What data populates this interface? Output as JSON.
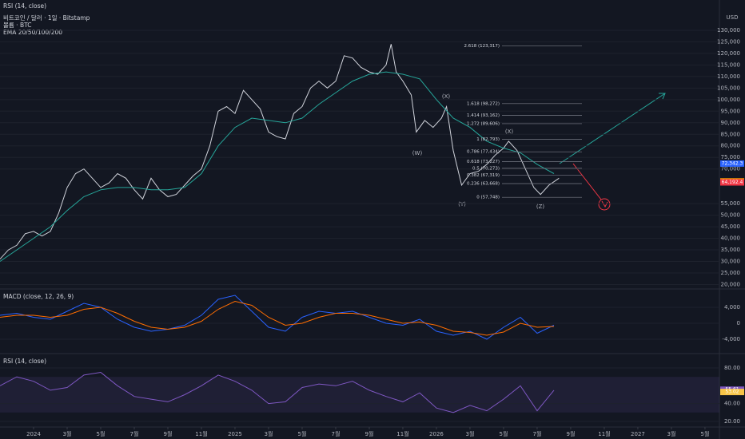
{
  "chart_data": [
    {
      "type": "line",
      "top_label": "RSI (14, close)",
      "legend_lines": [
        "비트코인 / 달러 · 1일 · Bitstamp",
        "볼륨 · BTC",
        "EMA 20/50/100/200"
      ],
      "unit": "USD",
      "xlim": [
        -2,
        40.86
      ],
      "xticks": [
        {
          "value": 0,
          "label": "2024"
        },
        {
          "value": 2,
          "label": "3월"
        },
        {
          "value": 4,
          "label": "5월"
        },
        {
          "value": 6,
          "label": "7월"
        },
        {
          "value": 8,
          "label": "9월"
        },
        {
          "value": 10,
          "label": "11월"
        },
        {
          "value": 12,
          "label": "2025"
        },
        {
          "value": 14,
          "label": "3월"
        },
        {
          "value": 16,
          "label": "5월"
        },
        {
          "value": 18,
          "label": "7월"
        },
        {
          "value": 20,
          "label": "9월"
        },
        {
          "value": 22,
          "label": "11월"
        },
        {
          "value": 24,
          "label": "2026"
        },
        {
          "value": 26,
          "label": "3월"
        },
        {
          "value": 28,
          "label": "5월"
        },
        {
          "value": 30,
          "label": "7월"
        },
        {
          "value": 32,
          "label": "9월"
        },
        {
          "value": 34,
          "label": "11월"
        },
        {
          "value": 36,
          "label": "2027"
        },
        {
          "value": 38,
          "label": "3월"
        },
        {
          "value": 40,
          "label": "5월"
        }
      ],
      "ylim": [
        18100,
        143100
      ],
      "yticks": [
        {
          "value": 20000,
          "label": "20,000"
        },
        {
          "value": 25000,
          "label": "25,000"
        },
        {
          "value": 30000,
          "label": "30,000"
        },
        {
          "value": 35000,
          "label": "35,000"
        },
        {
          "value": 40000,
          "label": "40,000"
        },
        {
          "value": 45000,
          "label": "45,000"
        },
        {
          "value": 50000,
          "label": "50,000"
        },
        {
          "value": 55000,
          "label": "55,000"
        },
        {
          "value": 70000,
          "label": "70,000"
        },
        {
          "value": 75000,
          "label": "75,000"
        },
        {
          "value": 80000,
          "label": "80,000"
        },
        {
          "value": 85000,
          "label": "85,000"
        },
        {
          "value": 90000,
          "label": "90,000"
        },
        {
          "value": 95000,
          "label": "95,000"
        },
        {
          "value": 100000,
          "label": "100,000"
        },
        {
          "value": 105000,
          "label": "105,000"
        },
        {
          "value": 110000,
          "label": "110,000"
        },
        {
          "value": 115000,
          "label": "115,000"
        },
        {
          "value": 120000,
          "label": "120,000"
        },
        {
          "value": 125000,
          "label": "125,000"
        },
        {
          "value": 130000,
          "label": "130,000"
        }
      ],
      "series": [
        {
          "color": "#d1d4dc",
          "x": [
            -2,
            -1.5,
            -1,
            -0.5,
            0,
            0.5,
            1,
            1.5,
            2,
            2.5,
            3,
            3.5,
            4,
            4.5,
            5,
            5.5,
            6,
            6.5,
            7,
            7.5,
            8,
            8.5,
            9,
            9.5,
            10,
            10.5,
            11,
            11.5,
            12,
            12.5,
            13,
            13.5,
            14,
            14.5,
            15,
            15.5,
            16,
            16.5,
            17,
            17.5,
            18,
            18.5,
            19,
            19.5,
            20,
            20.5,
            21,
            21.3,
            21.6,
            22,
            22.5,
            22.8,
            23.3,
            23.8,
            24.3,
            24.6,
            25,
            25.5,
            26,
            26.5,
            27,
            27.5,
            28,
            28.3,
            28.8,
            29.3,
            29.8,
            30.2,
            30.7,
            31.3
          ],
          "values": [
            31000,
            35000,
            37000,
            42000,
            43000,
            41000,
            43000,
            51000,
            62000,
            68000,
            70000,
            66000,
            62000,
            64000,
            68000,
            66000,
            61000,
            57000,
            66000,
            61000,
            58000,
            59000,
            63000,
            67000,
            70000,
            80000,
            95000,
            97000,
            94000,
            104000,
            100000,
            96000,
            86000,
            84000,
            83000,
            94000,
            97000,
            105000,
            108000,
            105000,
            108000,
            119000,
            118000,
            114000,
            112000,
            111000,
            115000,
            124000,
            112000,
            108000,
            102000,
            86000,
            91000,
            88000,
            92000,
            97000,
            78000,
            63000,
            68000,
            69000,
            72000,
            76000,
            79000,
            82000,
            78000,
            70000,
            62000,
            59000,
            63000,
            66000
          ]
        },
        {
          "color": "#26a69a",
          "x": [
            -2,
            -1,
            0,
            1,
            2,
            3,
            4,
            5,
            6,
            7,
            8,
            9,
            10,
            11,
            12,
            13,
            14,
            15,
            16,
            17,
            18,
            19,
            20,
            21,
            22,
            23,
            24,
            25,
            26,
            27,
            28,
            29,
            30,
            31
          ],
          "values": [
            30000,
            35000,
            40000,
            45000,
            52000,
            58000,
            61000,
            62000,
            62000,
            61000,
            61000,
            62000,
            68000,
            80000,
            88000,
            92000,
            91000,
            90000,
            92000,
            98000,
            103000,
            108000,
            111000,
            112000,
            111000,
            109000,
            100000,
            92000,
            88000,
            82000,
            79000,
            77000,
            72000,
            68000
          ]
        }
      ],
      "fib_levels": [
        {
          "value": 123317,
          "label": "2.618 (123,317)"
        },
        {
          "value": 98272,
          "label": "1.618 (98,272)"
        },
        {
          "value": 93162,
          "label": "1.414 (93,162)"
        },
        {
          "value": 89606,
          "label": "1.272 (89,606)"
        },
        {
          "value": 82793,
          "label": "1 (82,793)"
        },
        {
          "value": 77434,
          "label": "0.786 (77,434)"
        },
        {
          "value": 73227,
          "label": "0.618 (73,227)"
        },
        {
          "value": 70273,
          "label": "0.5 (70,273)"
        },
        {
          "value": 67319,
          "label": "0.382 (67,319)"
        },
        {
          "value": 63668,
          "label": "0.236 (63,668)"
        },
        {
          "value": 57748,
          "label": "0 (57,748)"
        }
      ],
      "annotations": [
        "(W)",
        "(X)",
        "(Y)",
        "(X)",
        "(Z)"
      ],
      "price_labels": [
        {
          "value": 72342.3,
          "label": "72,342.3",
          "color": "#2962ff"
        },
        {
          "value": 64624.2,
          "label": "64,624.2",
          "color": "#ff9800"
        },
        {
          "value": 64192.4,
          "label": "64,192.4",
          "color": "#f23645"
        }
      ]
    },
    {
      "type": "line",
      "title": "MACD (close, 12, 26, 9)",
      "ylim": [
        -7000,
        8000
      ],
      "yticks": [
        {
          "value": 4000,
          "label": "4,000"
        },
        0,
        {
          "value": -4000,
          "label": "-4,000"
        }
      ],
      "series": [
        {
          "color": "#2962ff",
          "x": [
            -2,
            -1,
            0,
            1,
            2,
            3,
            4,
            5,
            6,
            7,
            8,
            9,
            10,
            11,
            12,
            13,
            14,
            15,
            16,
            17,
            18,
            19,
            20,
            21,
            22,
            23,
            24,
            25,
            26,
            27,
            28,
            29,
            30,
            31
          ],
          "values": [
            2000,
            2500,
            1500,
            1000,
            3000,
            5000,
            4000,
            1000,
            -1000,
            -2000,
            -1500,
            -500,
            2000,
            6000,
            7000,
            3000,
            -1000,
            -2000,
            1500,
            3000,
            2500,
            3000,
            1500,
            0,
            -500,
            1000,
            -2000,
            -3000,
            -2000,
            -4000,
            -1000,
            1500,
            -2500,
            -500
          ]
        },
        {
          "color": "#ff6d00",
          "x": [
            -2,
            -1,
            0,
            1,
            2,
            3,
            4,
            5,
            6,
            7,
            8,
            9,
            10,
            11,
            12,
            13,
            14,
            15,
            16,
            17,
            18,
            19,
            20,
            21,
            22,
            23,
            24,
            25,
            26,
            27,
            28,
            29,
            30,
            31
          ],
          "values": [
            1500,
            2000,
            2000,
            1500,
            2000,
            3500,
            4000,
            2500,
            500,
            -1000,
            -1500,
            -1000,
            500,
            3500,
            5500,
            4500,
            1500,
            -500,
            0,
            1500,
            2500,
            2500,
            2000,
            1000,
            0,
            300,
            -500,
            -2000,
            -2300,
            -3000,
            -2200,
            0,
            -1000,
            -800
          ]
        }
      ]
    },
    {
      "type": "line",
      "title": "RSI (14, close)",
      "ylim": [
        16.4,
        92.5
      ],
      "yticks": [
        {
          "value": 80,
          "label": "80.00"
        },
        {
          "value": 40,
          "label": "40.00"
        },
        {
          "value": 20,
          "label": "20.00"
        }
      ],
      "band": [
        30,
        70
      ],
      "series": [
        {
          "color": "#7e57c2",
          "x": [
            -2,
            -1,
            0,
            1,
            2,
            3,
            4,
            5,
            6,
            7,
            8,
            9,
            10,
            11,
            12,
            13,
            14,
            15,
            16,
            17,
            18,
            19,
            20,
            21,
            22,
            23,
            24,
            25,
            26,
            27,
            28,
            29,
            30,
            31
          ],
          "values": [
            60,
            70,
            65,
            55,
            58,
            72,
            75,
            60,
            48,
            45,
            42,
            50,
            60,
            72,
            65,
            55,
            40,
            42,
            58,
            62,
            60,
            65,
            55,
            48,
            42,
            52,
            35,
            30,
            38,
            32,
            45,
            60,
            32,
            55
          ]
        }
      ],
      "last_values": [
        55.61,
        53.02
      ]
    }
  ]
}
